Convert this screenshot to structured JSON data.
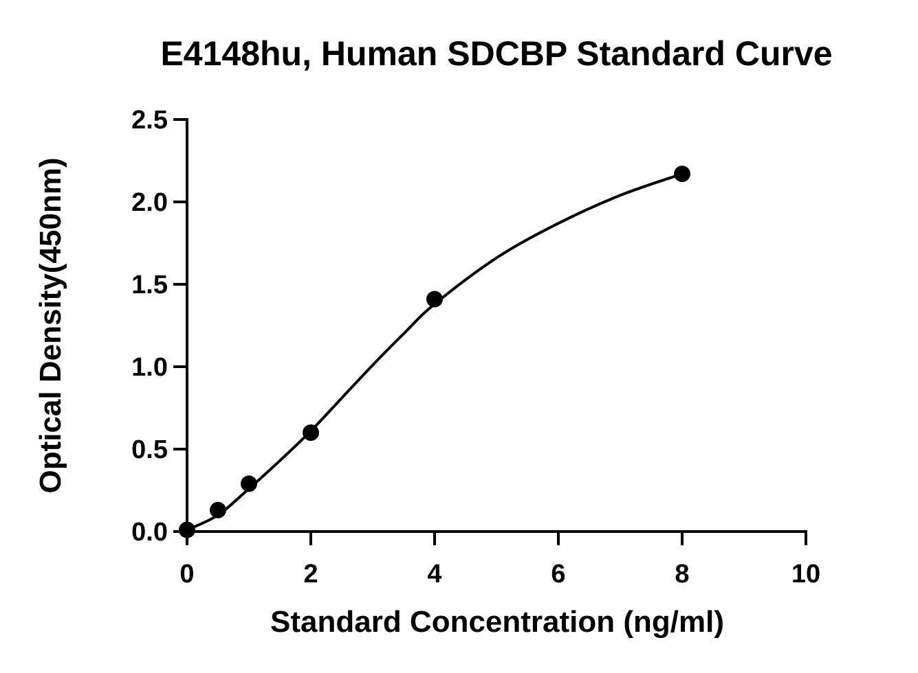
{
  "chart_data": {
    "type": "scatter",
    "title": "E4148hu, Human SDCBP Standard Curve",
    "xlabel": "Standard Concentration (ng/ml)",
    "ylabel": "Optical Density(450nm)",
    "xlim": [
      0,
      10
    ],
    "ylim": [
      0,
      2.5
    ],
    "xticks": [
      0,
      2,
      4,
      6,
      8,
      10
    ],
    "xtick_labels": [
      "0",
      "2",
      "4",
      "6",
      "8",
      "10"
    ],
    "yticks": [
      0,
      0.5,
      1.0,
      1.5,
      2.0,
      2.5
    ],
    "ytick_labels": [
      "0.0",
      "0.5",
      "1.0",
      "1.5",
      "2.0",
      "2.5"
    ],
    "grid": false,
    "legend": "none",
    "series": [
      {
        "points": [
          {
            "x": 0,
            "y": 0.01
          },
          {
            "x": 0.5,
            "y": 0.13
          },
          {
            "x": 1,
            "y": 0.29
          },
          {
            "x": 2,
            "y": 0.6
          },
          {
            "x": 4,
            "y": 1.41
          },
          {
            "x": 8,
            "y": 2.17
          }
        ],
        "marker": "filled-circle",
        "color": "#000000"
      }
    ],
    "fit_curve": {
      "model": "four-parameter logistic",
      "color": "#000000",
      "points": [
        {
          "x": 0,
          "y": 0.01
        },
        {
          "x": 0.5,
          "y": 0.1
        },
        {
          "x": 1,
          "y": 0.26
        },
        {
          "x": 1.5,
          "y": 0.43
        },
        {
          "x": 2,
          "y": 0.61
        },
        {
          "x": 2.5,
          "y": 0.81
        },
        {
          "x": 3,
          "y": 1.01
        },
        {
          "x": 3.5,
          "y": 1.2
        },
        {
          "x": 4,
          "y": 1.38
        },
        {
          "x": 5,
          "y": 1.66
        },
        {
          "x": 6,
          "y": 1.87
        },
        {
          "x": 7,
          "y": 2.04
        },
        {
          "x": 8,
          "y": 2.17
        }
      ]
    }
  }
}
